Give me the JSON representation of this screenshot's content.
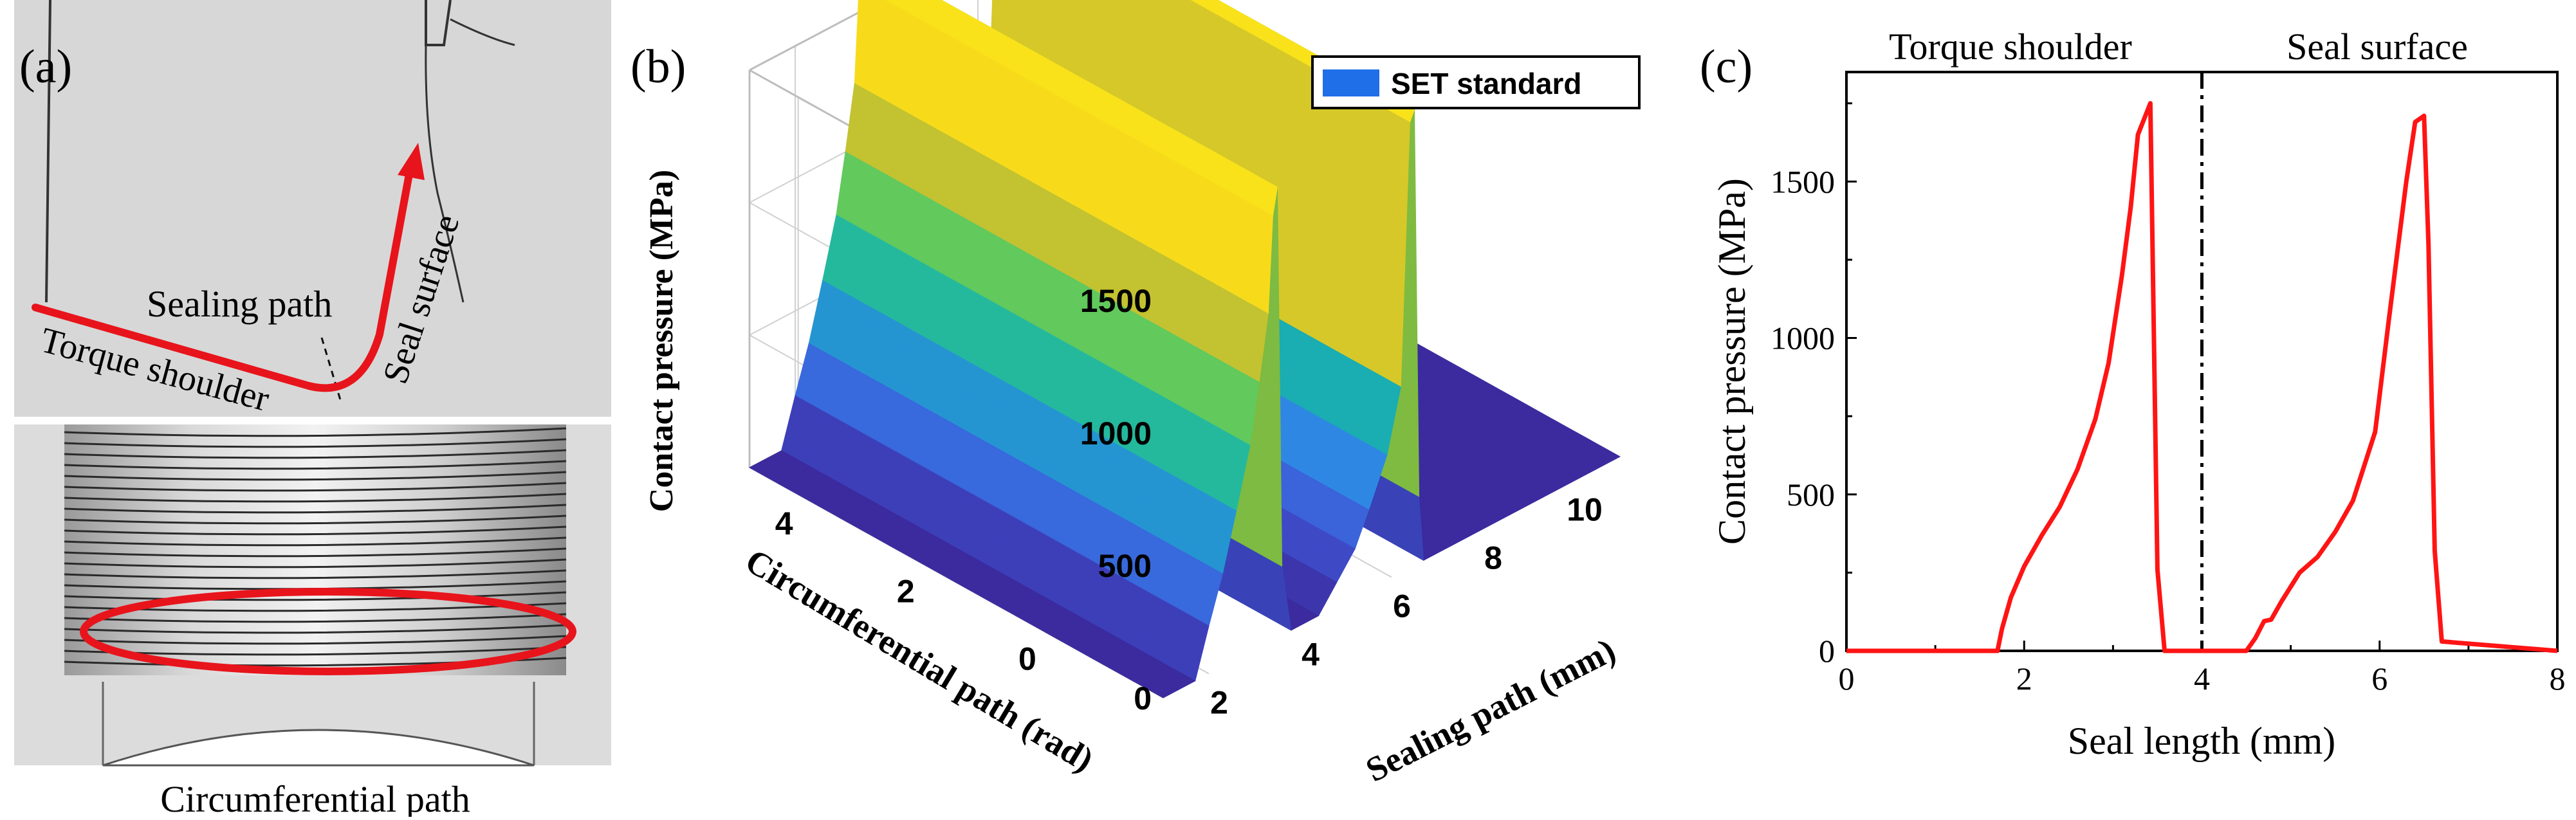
{
  "panel_a": {
    "label": "(a)",
    "labels": {
      "sealing_path": "Sealing path",
      "torque_shoulder": "Torque shoulder",
      "seal_surface": "Seal surface",
      "circumferential_path": "Circumferential path"
    },
    "colors": {
      "path": "#e8141c",
      "background": "#d7d7d7"
    }
  },
  "chart_data": [
    {
      "type": "surface",
      "panel_label": "(b)",
      "title": "",
      "zlabel": "Contact pressure (MPa)",
      "ylabel": "Circumferential path (rad)",
      "xlabel": "Sealing path (mm)",
      "legend": {
        "label": "SET standard",
        "placement": "top-right",
        "color": "#1f6fe8"
      },
      "z_ticks": [
        "0",
        "500",
        "1000",
        "1500"
      ],
      "y_ticks": [
        "0",
        "2",
        "4"
      ],
      "x_ticks": [
        "2",
        "4",
        "6",
        "8",
        "10"
      ],
      "zlim": [
        0,
        1500
      ],
      "ylim": [
        -2,
        4.8
      ],
      "xlim": [
        1,
        11
      ],
      "grid": true,
      "sealing_path_mm": [
        1.0,
        1.7,
        2.0,
        2.3,
        2.6,
        2.9,
        3.1,
        3.3,
        3.4,
        3.5,
        3.6,
        3.8,
        4.4,
        4.8,
        5.2,
        5.5,
        5.9,
        6.2,
        6.4,
        6.5,
        6.6,
        6.7,
        7.2,
        11.0
      ],
      "pressure_profile_mpa": [
        0,
        0,
        180,
        350,
        560,
        780,
        1000,
        1240,
        1600,
        1700,
        260,
        0,
        0,
        90,
        180,
        300,
        470,
        700,
        1680,
        1720,
        250,
        0,
        0,
        0
      ],
      "colormap": [
        "#3b2b9e",
        "#3f55d6",
        "#2f86e6",
        "#17aab6",
        "#2dc48a",
        "#74cb4e",
        "#c5c230",
        "#f5d21c",
        "#f9e21a"
      ]
    },
    {
      "type": "line",
      "panel_label": "(c)",
      "title": "",
      "xlabel": "Seal length (mm)",
      "ylabel": "Contact pressure (MPa)",
      "xlim": [
        0,
        8
      ],
      "ylim": [
        0,
        1850
      ],
      "x_ticks": [
        "0",
        "2",
        "4",
        "6",
        "8"
      ],
      "y_ticks": [
        "0",
        "500",
        "1000",
        "1500"
      ],
      "grid": false,
      "annotations": {
        "left_region": "Torque shoulder",
        "right_region": "Seal surface",
        "divider_x": 4
      },
      "series": [
        {
          "color": "#ff1414",
          "x": [
            0,
            1.7,
            1.75,
            1.85,
            2.0,
            2.2,
            2.4,
            2.6,
            2.8,
            2.95,
            3.1,
            3.2,
            3.28,
            3.35,
            3.42,
            3.5,
            3.58,
            4.5,
            4.6,
            4.7,
            4.78,
            4.9,
            5.1,
            5.3,
            5.5,
            5.7,
            5.95,
            6.1,
            6.3,
            6.4,
            6.5,
            6.55,
            6.62,
            6.7,
            8.0
          ],
          "y": [
            0,
            0,
            70,
            170,
            270,
            370,
            460,
            580,
            740,
            920,
            1200,
            1420,
            1650,
            1700,
            1750,
            260,
            0,
            0,
            40,
            95,
            100,
            160,
            250,
            300,
            380,
            480,
            700,
            1050,
            1500,
            1690,
            1710,
            1300,
            320,
            30,
            0
          ]
        }
      ]
    }
  ]
}
